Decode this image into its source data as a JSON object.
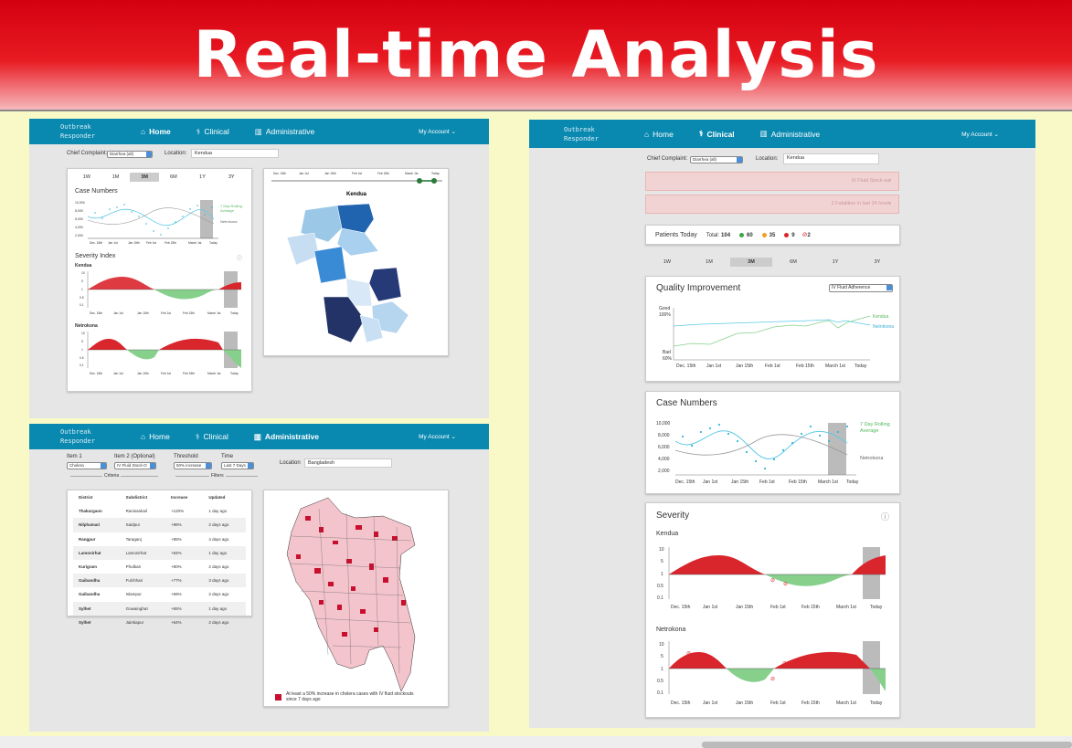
{
  "banner_title": "Real-time Analysis",
  "nav": {
    "logo_line1": "Outbreak",
    "logo_line2": "Responder",
    "home": "Home",
    "clinical": "Clinical",
    "administrative": "Administrative",
    "account": "My Account"
  },
  "home": {
    "chief_complaint_label": "Chief Complaint:",
    "chief_complaint_value": "Diarrhea (all)",
    "location_label": "Location:",
    "location_value": "Kendua",
    "tabs": [
      "1W",
      "1M",
      "3M",
      "6M",
      "1Y",
      "3Y"
    ],
    "active_tab": "3M",
    "case_numbers_title": "Case Numbers",
    "case_y_ticks": [
      "10,000",
      "8,000",
      "6,000",
      "4,000",
      "2,000"
    ],
    "case_x_ticks": [
      "Dec. 15th",
      "Jan 1st",
      "Jan 15th",
      "Feb 1st",
      "Feb 15th",
      "March 1st",
      "Today"
    ],
    "rolling_label_1": "7 Day Rolling",
    "rolling_label_2": "Average",
    "netrokona_label": "Netrokona",
    "severity_title": "Severity Index",
    "kendua_label": "Kendua",
    "netrokona_title": "Netrokona",
    "sev_y_ticks": [
      "10",
      "5",
      "1",
      "0.5",
      "0.1"
    ],
    "sev_x_ticks": [
      "Dec. 15th",
      "Jan 1st",
      "Jan 15th",
      "Feb 1st",
      "Feb 15th",
      "March 1st",
      "Today"
    ],
    "map_x_ticks": [
      "Dec. 15th",
      "Jan 1st",
      "Jan 15th",
      "Feb 1st",
      "Feb 15th",
      "March 1st",
      "Today"
    ],
    "map_title": "Kendua"
  },
  "admin": {
    "item1_label": "Item 1",
    "item1_value": "Cholera",
    "item2_label": "Item 2 (Optional)",
    "item2_value": "IV Fluid Stock-O",
    "threshold_label": "Threshold",
    "threshold_value": "50% increase",
    "time_label": "Time",
    "time_value": "Last 7 Days",
    "criteria_label": "Criteria",
    "filters_label": "Filters",
    "location_label": "Location",
    "location_value": "Bangladesh",
    "columns": [
      "District",
      "Subdistrict",
      "Increase",
      "Updated"
    ],
    "rows": [
      [
        "Thakurgaon",
        "Ranisankail",
        "+120%",
        "1 day ago"
      ],
      [
        "Nilphamari",
        "Saidpur",
        "+98%",
        "2 days ago"
      ],
      [
        "Rangpur",
        "Taraganj",
        "+85%",
        "4 days ago"
      ],
      [
        "Lamonirhat",
        "Lamonirhat",
        "+84%",
        "1 day ago"
      ],
      [
        "Kurigram",
        "Phulbari",
        "+80%",
        "2 days ago"
      ],
      [
        "Gaibandha",
        "Fulchhari",
        "+77%",
        "3 days ago"
      ],
      [
        "Gaibandha",
        "Islampur",
        "+69%",
        "2 days ago"
      ],
      [
        "Sylhet",
        "Gowainghat",
        "+65%",
        "1 day ago"
      ],
      [
        "Sylhet",
        "Jaintiapur",
        "+64%",
        "2 days ago"
      ]
    ],
    "legend_line1": "At least a 50% increase in cholera cases with IV fluid stockouts",
    "legend_line2": "since 7 days ago"
  },
  "clinical": {
    "chief_complaint_label": "Chief Complaint:",
    "chief_complaint_value": "Diarrhea (all)",
    "location_label": "Location:",
    "location_value": "Kendua",
    "alert1": "IV Fluid Stock-out",
    "alert2": "2 Fatalities in last 24 hours",
    "close": "×",
    "patients_today_label": "Patients Today",
    "total_label": "Total:",
    "total_value": "104",
    "green_count": "60",
    "orange_count": "35",
    "red_count": "9",
    "fatal_count": "2",
    "tabs": [
      "1W",
      "1M",
      "3M",
      "6M",
      "1Y",
      "3Y"
    ],
    "active_tab": "3M",
    "qi_title": "Quality Improvement",
    "qi_select": "IV Fluid Adherence",
    "qi_good": "Good",
    "qi_good_pct": "100%",
    "qi_bad": "Bad",
    "qi_bad_pct": "60%",
    "qi_kendua": "Kendua",
    "qi_netrokona": "Netrokona",
    "x_ticks": [
      "Dec. 15th",
      "Jan 1st",
      "Jan 15th",
      "Feb 1st",
      "Feb 15th",
      "March 1st",
      "Today"
    ],
    "case_title": "Case Numbers",
    "case_y_ticks": [
      "10,000",
      "8,000",
      "6,000",
      "4,000",
      "2,000"
    ],
    "rolling_1": "7 Day Rolling",
    "rolling_2": "Average",
    "netrokona": "Netrokona",
    "severity_title": "Severity",
    "kendua": "Kendua",
    "netrokona_title": "Netrokona",
    "sev_y_ticks": [
      "10",
      "5",
      "1",
      "0.5",
      "0.1"
    ]
  },
  "colors": {
    "nav": "#0a89b0",
    "red": "#d9262c",
    "green": "#86d08c",
    "teal": "#35b8d8"
  }
}
